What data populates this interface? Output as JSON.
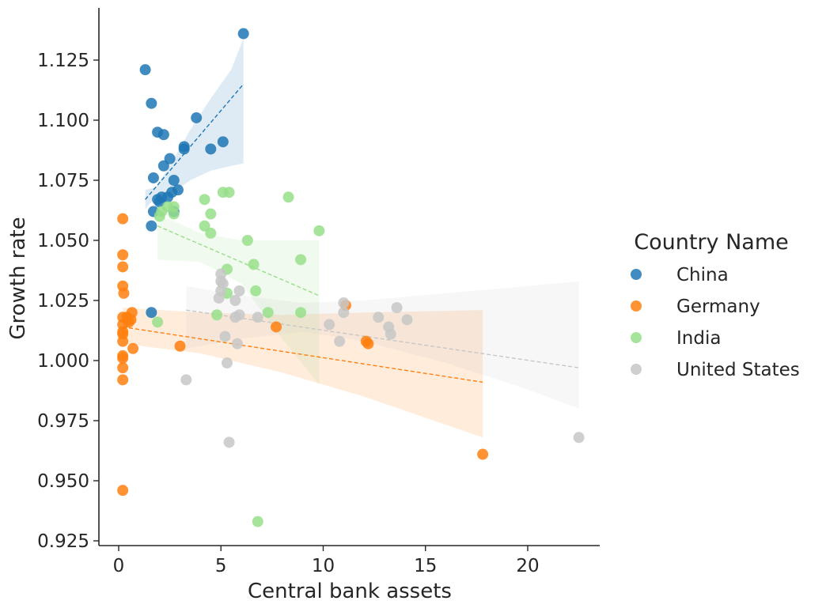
{
  "chart_data": {
    "type": "scatter",
    "xlabel": "Central bank assets",
    "ylabel": "Growth rate",
    "xlim": [
      -1,
      23.5
    ],
    "ylim": [
      0.923,
      1.1465
    ],
    "xticks": [
      "0",
      "5",
      "10",
      "15",
      "20"
    ],
    "yticks": [
      "0.925",
      "0.950",
      "0.975",
      "1.000",
      "1.025",
      "1.050",
      "1.075",
      "1.100",
      "1.125"
    ],
    "legend": {
      "title": "Country Name",
      "placement": "right"
    },
    "series": [
      {
        "name": "China",
        "color": "#1f77b4",
        "points": [
          [
            1.3,
            1.121
          ],
          [
            1.6,
            1.107
          ],
          [
            1.9,
            1.095
          ],
          [
            2.2,
            1.094
          ],
          [
            3.8,
            1.101
          ],
          [
            6.1,
            1.136
          ],
          [
            2.5,
            1.084
          ],
          [
            2.2,
            1.081
          ],
          [
            3.2,
            1.089
          ],
          [
            3.2,
            1.088
          ],
          [
            4.5,
            1.088
          ],
          [
            5.1,
            1.091
          ],
          [
            1.7,
            1.076
          ],
          [
            2.7,
            1.075
          ],
          [
            2.9,
            1.071
          ],
          [
            2.6,
            1.07
          ],
          [
            2.4,
            1.068
          ],
          [
            1.9,
            1.067
          ],
          [
            2.1,
            1.068
          ],
          [
            2.0,
            1.066
          ],
          [
            1.7,
            1.062
          ],
          [
            1.6,
            1.056
          ],
          [
            1.6,
            1.02
          ],
          [
            2.7,
            1.062
          ]
        ],
        "fit": {
          "x": [
            1.3,
            6.1
          ],
          "y": [
            1.067,
            1.115
          ]
        },
        "ci": {
          "x": [
            1.3,
            1.8,
            2.5,
            3.5,
            4.5,
            5.5,
            6.1
          ],
          "upper": [
            1.071,
            1.072,
            1.081,
            1.096,
            1.109,
            1.121,
            1.134
          ],
          "lower": [
            1.063,
            1.068,
            1.069,
            1.075,
            1.079,
            1.081,
            1.082
          ]
        }
      },
      {
        "name": "Germany",
        "color": "#ff7f0e",
        "points": [
          [
            0.2,
            1.059
          ],
          [
            0.2,
            1.044
          ],
          [
            0.2,
            1.039
          ],
          [
            0.2,
            1.031
          ],
          [
            0.25,
            1.028
          ],
          [
            0.2,
            1.018
          ],
          [
            0.2,
            1.015
          ],
          [
            0.2,
            1.012
          ],
          [
            0.2,
            1.011
          ],
          [
            0.2,
            1.008
          ],
          [
            0.2,
            1.002
          ],
          [
            0.2,
            1.001
          ],
          [
            0.2,
            0.997
          ],
          [
            0.2,
            0.992
          ],
          [
            0.2,
            0.946
          ],
          [
            0.4,
            1.018
          ],
          [
            0.5,
            1.016
          ],
          [
            0.65,
            1.02
          ],
          [
            0.6,
            1.017
          ],
          [
            0.7,
            1.005
          ],
          [
            3.0,
            1.006
          ],
          [
            7.7,
            1.014
          ],
          [
            11.1,
            1.023
          ],
          [
            12.1,
            1.008
          ],
          [
            12.2,
            1.007
          ],
          [
            17.8,
            0.961
          ]
        ],
        "fit": {
          "x": [
            0.2,
            17.8
          ],
          "y": [
            1.014,
            0.991
          ]
        },
        "ci": {
          "x": [
            0.2,
            4,
            8,
            12,
            17.8
          ],
          "upper": [
            1.022,
            1.02,
            1.019,
            1.02,
            1.021
          ],
          "lower": [
            1.007,
            1.003,
            0.995,
            0.985,
            0.968
          ]
        }
      },
      {
        "name": "India",
        "color": "#98df8a",
        "points": [
          [
            5.1,
            1.07
          ],
          [
            5.4,
            1.07
          ],
          [
            8.3,
            1.068
          ],
          [
            4.2,
            1.067
          ],
          [
            2.4,
            1.064
          ],
          [
            2.7,
            1.064
          ],
          [
            2.1,
            1.062
          ],
          [
            2.0,
            1.06
          ],
          [
            2.7,
            1.061
          ],
          [
            4.5,
            1.061
          ],
          [
            4.2,
            1.056
          ],
          [
            4.5,
            1.053
          ],
          [
            9.8,
            1.054
          ],
          [
            6.3,
            1.05
          ],
          [
            8.9,
            1.042
          ],
          [
            6.6,
            1.04
          ],
          [
            5.3,
            1.038
          ],
          [
            6.7,
            1.029
          ],
          [
            5.3,
            1.028
          ],
          [
            8.9,
            1.02
          ],
          [
            7.3,
            1.02
          ],
          [
            4.8,
            1.019
          ],
          [
            1.9,
            1.016
          ],
          [
            6.8,
            0.933
          ]
        ],
        "fit": {
          "x": [
            1.9,
            9.8
          ],
          "y": [
            1.056,
            1.027
          ]
        },
        "ci": {
          "x": [
            1.9,
            4,
            6,
            8,
            9.8
          ],
          "upper": [
            1.061,
            1.053,
            1.05,
            1.05,
            1.05
          ],
          "lower": [
            1.042,
            1.041,
            1.032,
            1.009,
            0.99
          ]
        }
      },
      {
        "name": "United States",
        "color": "#c7c7c7",
        "points": [
          [
            5.0,
            1.036
          ],
          [
            5.0,
            1.033
          ],
          [
            5.1,
            1.032
          ],
          [
            5.0,
            1.029
          ],
          [
            5.9,
            1.029
          ],
          [
            4.9,
            1.026
          ],
          [
            5.7,
            1.025
          ],
          [
            5.9,
            1.019
          ],
          [
            5.7,
            1.018
          ],
          [
            6.8,
            1.018
          ],
          [
            5.2,
            1.01
          ],
          [
            5.8,
            1.007
          ],
          [
            5.3,
            0.999
          ],
          [
            3.3,
            0.992
          ],
          [
            5.4,
            0.966
          ],
          [
            11.0,
            1.024
          ],
          [
            13.6,
            1.022
          ],
          [
            11.0,
            1.02
          ],
          [
            12.7,
            1.018
          ],
          [
            14.1,
            1.017
          ],
          [
            10.3,
            1.015
          ],
          [
            13.2,
            1.014
          ],
          [
            13.3,
            1.011
          ],
          [
            10.8,
            1.008
          ],
          [
            22.5,
            0.968
          ]
        ],
        "fit": {
          "x": [
            3.3,
            22.5
          ],
          "y": [
            1.021,
            0.997
          ]
        },
        "ci": {
          "x": [
            3.3,
            6,
            9,
            12,
            16,
            20,
            22.5
          ],
          "upper": [
            1.031,
            1.027,
            1.024,
            1.025,
            1.028,
            1.031,
            1.033
          ],
          "lower": [
            1.005,
            1.009,
            1.012,
            1.008,
            0.999,
            0.988,
            0.98
          ]
        }
      }
    ]
  }
}
